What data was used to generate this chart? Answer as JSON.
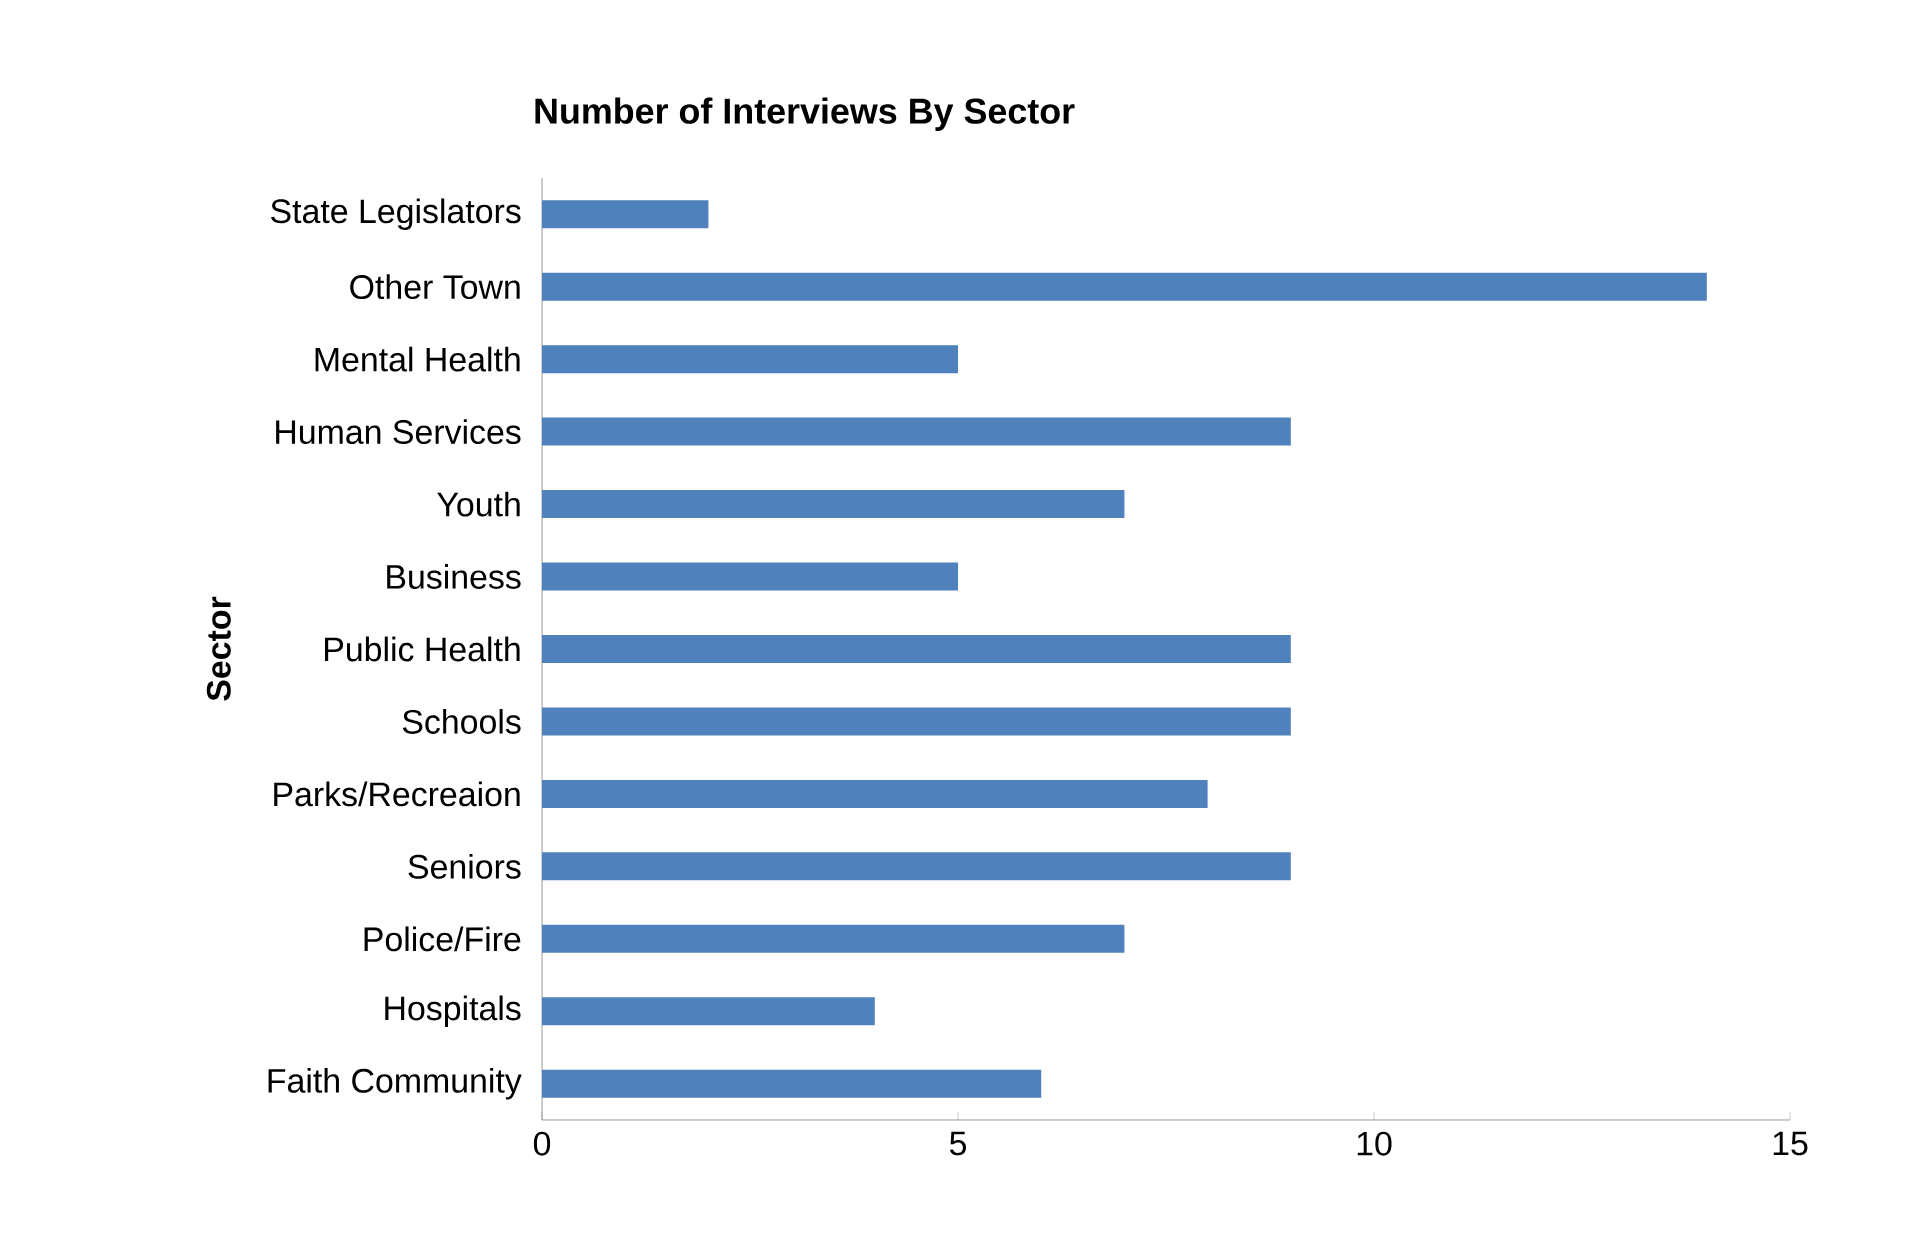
{
  "chart_data": {
    "type": "bar",
    "orientation": "horizontal",
    "title": "Number of Interviews By Sector",
    "ylabel": "Sector",
    "categories": [
      "State Legislators",
      "Other Town",
      "Mental Health",
      "Human Services",
      "Youth",
      "Business",
      "Public Health",
      "Schools",
      "Parks/Recreaion",
      "Seniors",
      "Police/Fire",
      "Hospitals",
      "Faith Community"
    ],
    "values": [
      2,
      14,
      5,
      9,
      7,
      5,
      9,
      9,
      8,
      9,
      7,
      4,
      6
    ],
    "color": "#4f81bd",
    "xlim": [
      0,
      15
    ],
    "xticks": [
      0,
      5,
      10,
      15
    ]
  }
}
